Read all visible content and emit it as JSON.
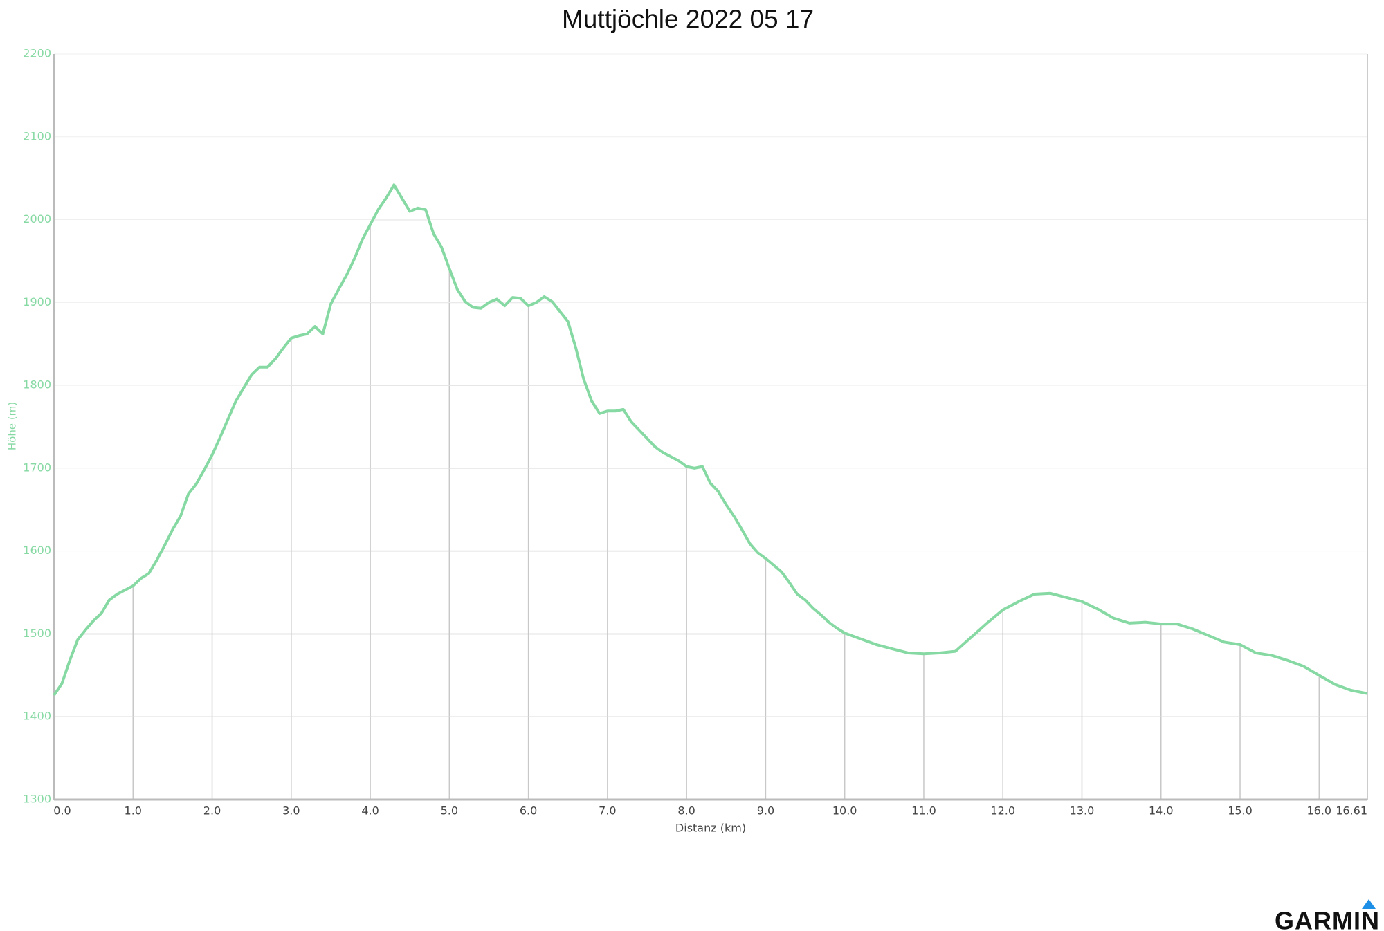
{
  "chart_data": {
    "type": "line",
    "title": "Muttjöchle 2022 05 17",
    "x_label": "Distanz (km)",
    "y_label": "Höhe (m)",
    "logo": "GARMIN",
    "xlim": [
      0,
      16.61
    ],
    "ylim": [
      1300,
      2200
    ],
    "xticks": [
      {
        "value": 0,
        "label": "0.0"
      },
      {
        "value": 1,
        "label": "1.0"
      },
      {
        "value": 2,
        "label": "2.0"
      },
      {
        "value": 3,
        "label": "3.0"
      },
      {
        "value": 4,
        "label": "4.0"
      },
      {
        "value": 5,
        "label": "5.0"
      },
      {
        "value": 6,
        "label": "6.0"
      },
      {
        "value": 7,
        "label": "7.0"
      },
      {
        "value": 8,
        "label": "8.0"
      },
      {
        "value": 9,
        "label": "9.0"
      },
      {
        "value": 10,
        "label": "10.0"
      },
      {
        "value": 11,
        "label": "11.0"
      },
      {
        "value": 12,
        "label": "12.0"
      },
      {
        "value": 13,
        "label": "13.0"
      },
      {
        "value": 14,
        "label": "14.0"
      },
      {
        "value": 15,
        "label": "15.0"
      },
      {
        "value": 16,
        "label": "16.0"
      },
      16.61
    ],
    "yticks": [
      1300,
      1400,
      1500,
      1600,
      1700,
      1800,
      1900,
      2000,
      2100,
      2200
    ],
    "grid": true,
    "color": "#86d9a3",
    "x": [
      0,
      0.1,
      0.2,
      0.3,
      0.4,
      0.5,
      0.6,
      0.7,
      0.8,
      0.9,
      1.0,
      1.1,
      1.2,
      1.3,
      1.4,
      1.5,
      1.6,
      1.7,
      1.8,
      1.9,
      2.0,
      2.1,
      2.2,
      2.3,
      2.4,
      2.5,
      2.6,
      2.7,
      2.8,
      2.9,
      3.0,
      3.1,
      3.2,
      3.3,
      3.4,
      3.5,
      3.6,
      3.7,
      3.8,
      3.9,
      4.0,
      4.1,
      4.2,
      4.3,
      4.4,
      4.5,
      4.6,
      4.7,
      4.8,
      4.9,
      5.0,
      5.1,
      5.2,
      5.3,
      5.4,
      5.5,
      5.6,
      5.7,
      5.8,
      5.9,
      6.0,
      6.1,
      6.2,
      6.3,
      6.4,
      6.5,
      6.6,
      6.7,
      6.8,
      6.9,
      7.0,
      7.1,
      7.2,
      7.3,
      7.4,
      7.5,
      7.6,
      7.7,
      7.8,
      7.9,
      8.0,
      8.1,
      8.2,
      8.3,
      8.4,
      8.5,
      8.6,
      8.7,
      8.8,
      8.9,
      9.0,
      9.1,
      9.2,
      9.3,
      9.4,
      9.5,
      9.6,
      9.7,
      9.8,
      9.9,
      10.0,
      10.2,
      10.4,
      10.6,
      10.8,
      11.0,
      11.2,
      11.4,
      11.6,
      11.8,
      12.0,
      12.2,
      12.4,
      12.6,
      12.8,
      13.0,
      13.2,
      13.4,
      13.6,
      13.8,
      14.0,
      14.2,
      14.4,
      14.6,
      14.8,
      15.0,
      15.2,
      15.4,
      15.6,
      15.8,
      16.0,
      16.2,
      16.4,
      16.61
    ],
    "values": [
      1426,
      1440,
      1468,
      1493,
      1505,
      1516,
      1525,
      1541,
      1548,
      1553,
      1558,
      1567,
      1573,
      1589,
      1607,
      1626,
      1642,
      1669,
      1681,
      1698,
      1716,
      1737,
      1759,
      1781,
      1797,
      1813,
      1822,
      1822,
      1832,
      1845,
      1857,
      1860,
      1862,
      1871,
      1862,
      1898,
      1916,
      1933,
      1953,
      1976,
      1994,
      2012,
      2026,
      2042,
      2026,
      2010,
      2014,
      2012,
      1983,
      1967,
      1941,
      1916,
      1901,
      1894,
      1893,
      1900,
      1904,
      1896,
      1906,
      1905,
      1896,
      1900,
      1907,
      1901,
      1889,
      1877,
      1845,
      1807,
      1781,
      1766,
      1769,
      1769,
      1771,
      1756,
      1746,
      1736,
      1726,
      1719,
      1714,
      1709,
      1702,
      1700,
      1702,
      1682,
      1672,
      1656,
      1642,
      1626,
      1609,
      1598,
      1591,
      1583,
      1575,
      1562,
      1548,
      1541,
      1531,
      1523,
      1514,
      1507,
      1501,
      1494,
      1487,
      1482,
      1477,
      1476,
      1477,
      1479,
      1496,
      1513,
      1529,
      1539,
      1548,
      1549,
      1544,
      1539,
      1530,
      1519,
      1513,
      1514,
      1512,
      1512,
      1506,
      1498,
      1490,
      1487,
      1477,
      1474,
      1468,
      1461,
      1450,
      1439,
      1432,
      1428
    ]
  }
}
